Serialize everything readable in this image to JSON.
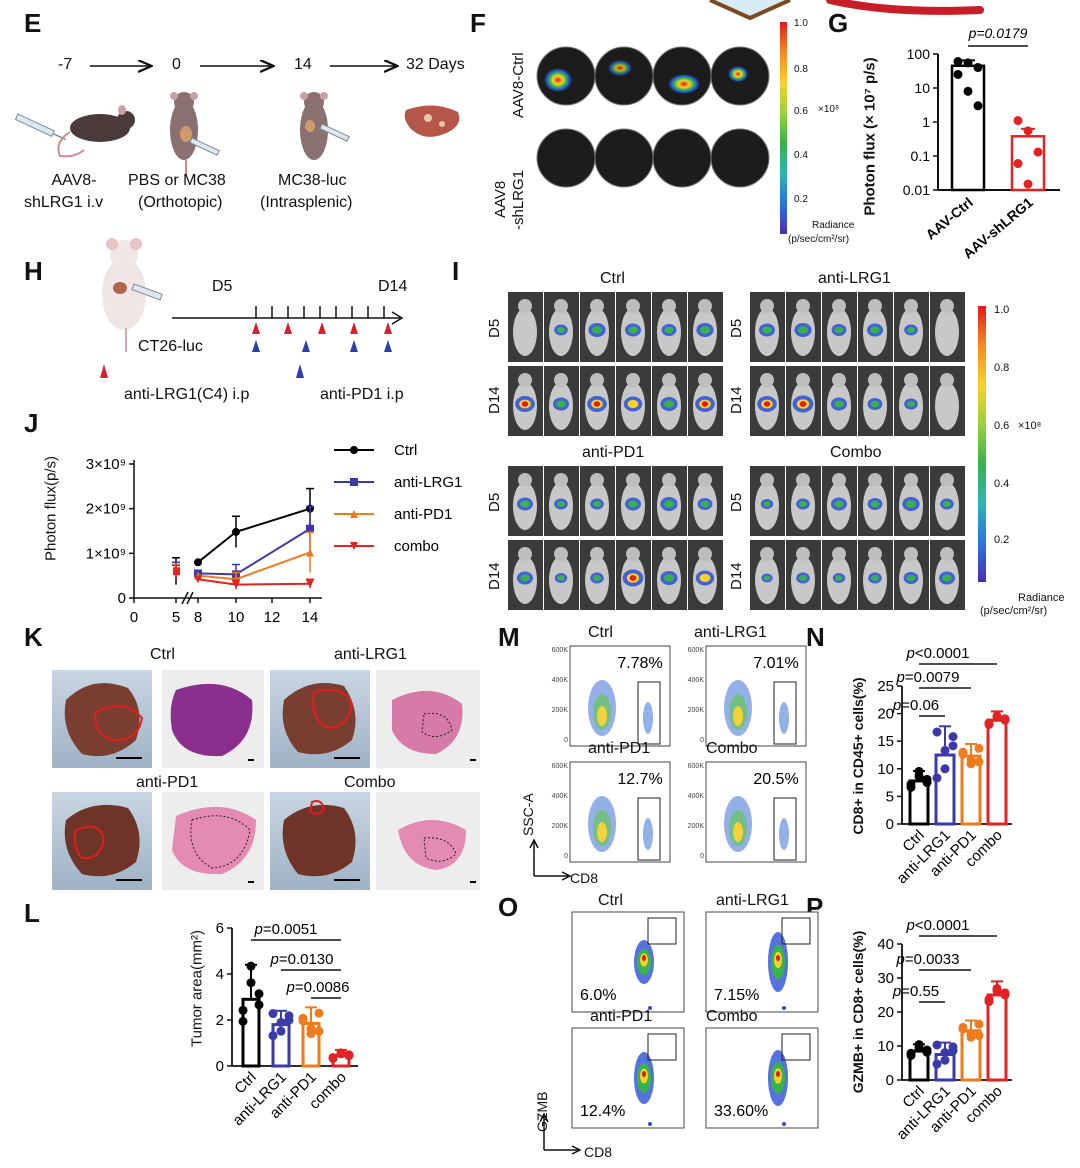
{
  "panels": {
    "E": {
      "label": "E",
      "timeline": [
        "-7",
        "0",
        "14",
        "32 Days"
      ],
      "captions": [
        "AAV8-\nshLRG1  i.v",
        "PBS or MC38\n(Orthotopic)",
        "MC38-luc\n(Intrasplenic)"
      ],
      "cap1a": "AAV8-",
      "cap1b": "shLRG1  i.v",
      "cap2a": "PBS or MC38",
      "cap2b": "(Orthotopic)",
      "cap3a": "MC38-luc",
      "cap3b": "(Intrasplenic)"
    },
    "F": {
      "label": "F",
      "row1": "AAV8-Ctrl",
      "row2a": "AAV8",
      "row2b": "-shLRG1",
      "scale_ticks": [
        "1.0",
        "0.8",
        "0.6",
        "0.4",
        "0.2"
      ],
      "scale_unit": "×10⁸",
      "radiance_a": "Radiance",
      "radiance_b": "(p/sec/cm²/sr)"
    },
    "G": {
      "label": "G",
      "pvalue": "p=0.0179",
      "ylabel": "Photon flux (× 10⁷ p/s)",
      "yticks": [
        "100",
        "10",
        "1",
        "0.1",
        "0.01"
      ],
      "xticks": [
        "AAV-Ctrl",
        "AAV-shLRG1"
      ]
    },
    "H": {
      "label": "H",
      "d5": "D5",
      "d14": "D14",
      "cell": "CT26-luc",
      "legend_red": "anti-LRG1(C4) i.p",
      "legend_blue": "anti-PD1 i.p"
    },
    "I": {
      "label": "I",
      "groups": [
        "Ctrl",
        "anti-LRG1",
        "anti-PD1",
        "Combo"
      ],
      "rows": [
        "D5",
        "D14"
      ],
      "scale_ticks": [
        "1.0",
        "0.8",
        "0.6",
        "0.4",
        "0.2"
      ],
      "scale_unit": "×10⁸",
      "radiance_a": "Radiance",
      "radiance_b": "(p/sec/cm²/sr)"
    },
    "J": {
      "label": "J",
      "ylabel": "Photon flux(p/s)",
      "yticks": [
        "3×10⁹",
        "2×10⁹",
        "1×10⁹",
        "0"
      ],
      "xticks": [
        "0",
        "5",
        "8",
        "10",
        "12",
        "14"
      ]
    },
    "K": {
      "label": "K",
      "groups": [
        "Ctrl",
        "anti-LRG1",
        "anti-PD1",
        "Combo"
      ]
    },
    "L": {
      "label": "L",
      "ylabel": "Tumor area(mm²)",
      "yticks": [
        "6",
        "4",
        "2",
        "0"
      ],
      "xticks": [
        "Ctrl",
        "anti-LRG1",
        "anti-PD1",
        "combo"
      ],
      "pvalues": [
        "p=0.0051",
        "p=0.0130",
        "p=0.0086"
      ]
    },
    "M": {
      "label": "M",
      "groups": [
        "Ctrl",
        "anti-LRG1",
        "anti-PD1",
        "Combo"
      ],
      "percents": [
        "7.78%",
        "7.01%",
        "12.7%",
        "20.5%"
      ],
      "yticks": [
        "600K",
        "400K",
        "200K",
        "0"
      ],
      "yaxis": "SSC-A",
      "xaxis": "CD8"
    },
    "N": {
      "label": "N",
      "ylabel": "CD8+ in CD45+ cells(%)",
      "yticks": [
        "25",
        "20",
        "15",
        "10",
        "5",
        "0"
      ],
      "xticks": [
        "Ctrl",
        "anti-LRG1",
        "anti-PD1",
        "combo"
      ],
      "pvalues": [
        "p<0.0001",
        "p=0.0079",
        "p=0.06"
      ]
    },
    "O": {
      "label": "O",
      "groups": [
        "Ctrl",
        "anti-LRG1",
        "anti-PD1",
        "Combo"
      ],
      "percents": [
        "6.0%",
        "7.15%",
        "12.4%",
        "33.60%"
      ],
      "yaxis": "GZMB",
      "xaxis": "CD8"
    },
    "P": {
      "label": "P",
      "ylabel": "GZMB+ in CD8+ cells(%)",
      "yticks": [
        "40",
        "30",
        "20",
        "10",
        "0"
      ],
      "xticks": [
        "Ctrl",
        "anti-LRG1",
        "anti-PD1",
        "combo"
      ],
      "pvalues": [
        "p<0.0001",
        "p=0.0033",
        "p=0.55"
      ]
    }
  },
  "chart_data": [
    {
      "panel": "G",
      "type": "bar",
      "yscale": "log",
      "ylim": [
        0.01,
        100
      ],
      "categories": [
        "AAV-Ctrl",
        "AAV-shLRG1"
      ],
      "values": [
        45,
        0.38
      ],
      "errors": [
        20,
        0.25
      ],
      "points": [
        [
          60,
          55,
          40,
          25,
          8,
          3
        ],
        [
          1.1,
          0.55,
          0.13,
          0.06,
          0.015
        ]
      ],
      "colors": [
        "#000000",
        "#e32323"
      ]
    },
    {
      "panel": "J",
      "type": "line",
      "x": [
        5,
        8,
        10,
        14
      ],
      "ylim": [
        0,
        3000000000
      ],
      "series": [
        {
          "name": "Ctrl",
          "color": "#000000",
          "values": [
            600000000,
            800000000,
            1480000000,
            2000000000
          ],
          "errors": [
            300000000,
            0,
            350000000,
            450000000
          ]
        },
        {
          "name": "anti-LRG1",
          "color": "#3a3aa8",
          "values": [
            600000000,
            550000000,
            530000000,
            1550000000
          ],
          "errors": [
            200000000,
            0,
            220000000,
            500000000
          ]
        },
        {
          "name": "anti-PD1",
          "color": "#f07b1d",
          "values": [
            600000000,
            500000000,
            420000000,
            1020000000
          ],
          "errors": [
            150000000,
            0,
            150000000,
            450000000
          ]
        },
        {
          "name": "combo",
          "color": "#e32323",
          "values": [
            580000000,
            420000000,
            300000000,
            320000000
          ],
          "errors": [
            150000000,
            0,
            100000000,
            100000000
          ]
        }
      ]
    },
    {
      "panel": "L",
      "type": "bar",
      "ylim": [
        0,
        6
      ],
      "categories": [
        "Ctrl",
        "anti-LRG1",
        "anti-PD1",
        "combo"
      ],
      "values": [
        2.9,
        1.8,
        1.85,
        0.45
      ],
      "errors": [
        1.5,
        0.6,
        0.7,
        0.25
      ],
      "colors": [
        "#000000",
        "#3a3aa8",
        "#f07b1d",
        "#e32323"
      ]
    },
    {
      "panel": "N",
      "type": "bar",
      "ylim": [
        0,
        25
      ],
      "categories": [
        "Ctrl",
        "anti-LRG1",
        "anti-PD1",
        "combo"
      ],
      "values": [
        7.8,
        12.5,
        12.3,
        18.8
      ],
      "errors": [
        1.8,
        5.2,
        2.2,
        1.6
      ],
      "colors": [
        "#000000",
        "#3a3aa8",
        "#f07b1d",
        "#e32323"
      ]
    },
    {
      "panel": "P",
      "type": "bar",
      "ylim": [
        0,
        40
      ],
      "categories": [
        "Ctrl",
        "anti-LRG1",
        "anti-PD1",
        "combo"
      ],
      "values": [
        8.5,
        7.5,
        14.5,
        25
      ],
      "errors": [
        2,
        3.5,
        3,
        4
      ],
      "colors": [
        "#000000",
        "#3a3aa8",
        "#f07b1d",
        "#e32323"
      ]
    }
  ]
}
